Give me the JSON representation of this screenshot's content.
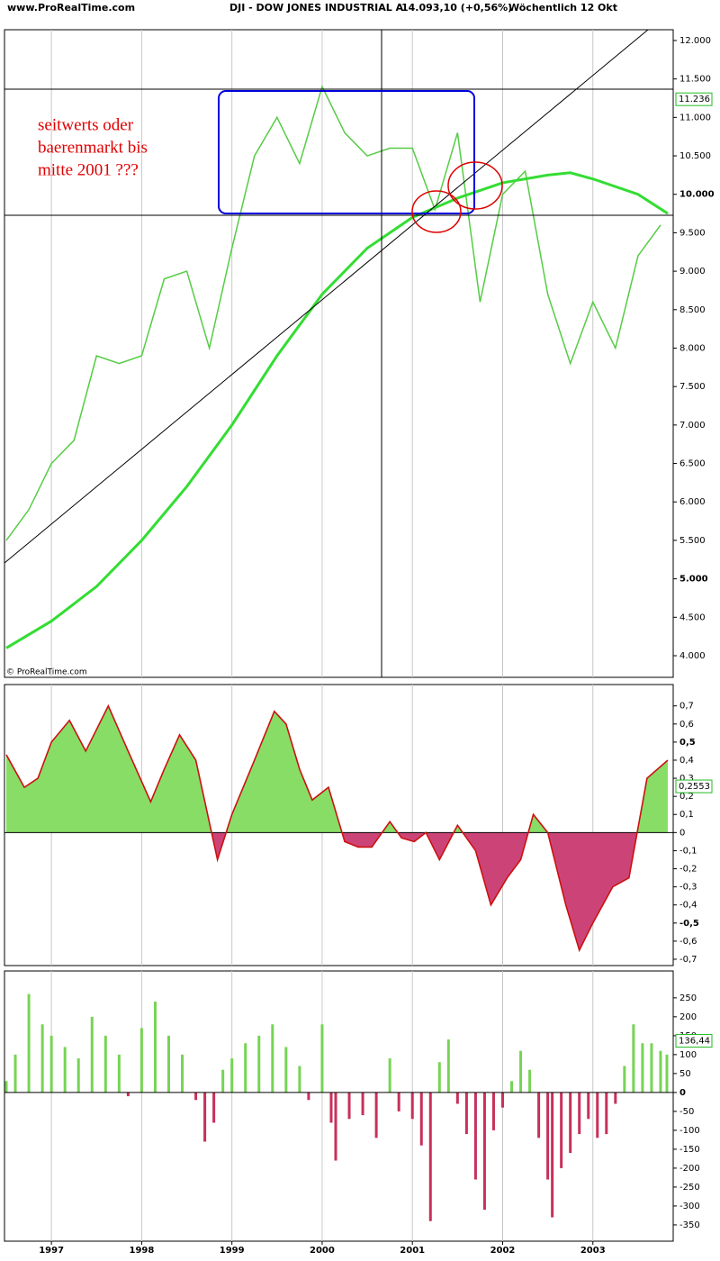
{
  "chart_data": [
    {
      "type": "line",
      "site": "www.ProRealTime.com",
      "title": "DJI - DOW JONES INDUSTRIAL A",
      "quote": "14.093,10 (+0,56%)",
      "period": "Wöchentlich  12 Okt",
      "annotation": [
        "seitwerts oder",
        "baerenmarkt bis",
        "mitte 2001 ???"
      ],
      "copyright": "© ProRealTime.com",
      "last_label": {
        "value": 11236,
        "label": "11.236"
      },
      "last_color": "#22bb22",
      "xlim": [
        1996.48,
        2003.89
      ],
      "ylim": [
        3719,
        12140
      ],
      "yticks": [
        {
          "value": 4000,
          "label": "4.000"
        },
        {
          "value": 4500,
          "label": "4.500"
        },
        {
          "value": 5000,
          "label": "5.000",
          "bold": true
        },
        {
          "value": 5500,
          "label": "5.500"
        },
        {
          "value": 6000,
          "label": "6.000"
        },
        {
          "value": 6500,
          "label": "6.500"
        },
        {
          "value": 7000,
          "label": "7.000"
        },
        {
          "value": 7500,
          "label": "7.500"
        },
        {
          "value": 8000,
          "label": "8.000"
        },
        {
          "value": 8500,
          "label": "8.500"
        },
        {
          "value": 9000,
          "label": "9.000"
        },
        {
          "value": 9500,
          "label": "9.500"
        },
        {
          "value": 10000,
          "label": "10.000",
          "bold": true
        },
        {
          "value": 10500,
          "label": "10.500"
        },
        {
          "value": 11000,
          "label": "11.000"
        },
        {
          "value": 11500,
          "label": "11.500"
        },
        {
          "value": 12000,
          "label": "12.000"
        }
      ],
      "series": [
        {
          "color": "#55cc44",
          "width": 1.5,
          "x": [
            1996.5,
            1996.75,
            1997.0,
            1997.25,
            1997.5,
            1997.75,
            1998.0,
            1998.25,
            1998.5,
            1998.75,
            1999.0,
            1999.25,
            1999.5,
            1999.75,
            2000.0,
            2000.25,
            2000.5,
            2000.75,
            2001.0,
            2001.25,
            2001.5,
            2001.75,
            2002.0,
            2002.25,
            2002.5,
            2002.75,
            2003.0,
            2003.25,
            2003.5,
            2003.75
          ],
          "values": [
            5500,
            5900,
            6500,
            6800,
            7900,
            7800,
            7900,
            8900,
            9000,
            8000,
            9300,
            10500,
            11000,
            10400,
            11400,
            10800,
            10500,
            10600,
            10600,
            9800,
            10800,
            8600,
            10000,
            10300,
            8700,
            7800,
            8600,
            8000,
            9200,
            9600
          ]
        },
        {
          "color": "#33dd33",
          "width": 3,
          "x": [
            1996.5,
            1997.0,
            1997.5,
            1998.0,
            1998.5,
            1999.0,
            1999.5,
            2000.0,
            2000.5,
            2001.0,
            2001.5,
            2002.0,
            2002.5,
            2002.75,
            2003.0,
            2003.5,
            2003.83
          ],
          "values": [
            4100,
            4450,
            4900,
            5500,
            6200,
            7000,
            7900,
            8700,
            9300,
            9700,
            9950,
            10150,
            10250,
            10280,
            10200,
            10000,
            9750
          ]
        }
      ]
    },
    {
      "type": "area",
      "xlim": [
        1996.48,
        2003.89
      ],
      "ylim": [
        -0.735,
        0.818
      ],
      "last_label": {
        "value": 0.2553,
        "label": "0,2553"
      },
      "last_color": "#22bb22",
      "line_color": "#cc1111",
      "up_color": "#88dd66",
      "down_color": "#cc4477",
      "yticks": [
        {
          "value": 0.7,
          "label": "0,7"
        },
        {
          "value": 0.6,
          "label": "0,6"
        },
        {
          "value": 0.5,
          "label": "0,5",
          "bold": true
        },
        {
          "value": 0.4,
          "label": "0,4"
        },
        {
          "value": 0.3,
          "label": "0,3"
        },
        {
          "value": 0.2,
          "label": "0,2"
        },
        {
          "value": 0.1,
          "label": "0,1"
        },
        0,
        {
          "value": -0.1,
          "label": "-0,1"
        },
        {
          "value": -0.2,
          "label": "-0,2"
        },
        {
          "value": -0.3,
          "label": "-0,3"
        },
        {
          "value": -0.4,
          "label": "-0,4"
        },
        {
          "value": -0.5,
          "label": "-0,5",
          "bold": true
        },
        {
          "value": -0.6,
          "label": "-0,6"
        },
        {
          "value": -0.7,
          "label": "-0,7"
        }
      ],
      "x": [
        1996.5,
        1996.7,
        1996.85,
        1997.0,
        1997.2,
        1997.38,
        1997.63,
        1997.85,
        1998.1,
        1998.25,
        1998.42,
        1998.6,
        1998.84,
        1999.0,
        1999.25,
        1999.47,
        1999.6,
        1999.75,
        1999.89,
        2000.07,
        2000.25,
        2000.4,
        2000.55,
        2000.75,
        2000.88,
        2001.02,
        2001.15,
        2001.3,
        2001.5,
        2001.7,
        2001.87,
        2002.05,
        2002.2,
        2002.34,
        2002.5,
        2002.7,
        2002.85,
        2003.0,
        2003.22,
        2003.4,
        2003.6,
        2003.83
      ],
      "values": [
        0.43,
        0.25,
        0.3,
        0.5,
        0.62,
        0.45,
        0.7,
        0.45,
        0.17,
        0.35,
        0.54,
        0.4,
        -0.15,
        0.1,
        0.4,
        0.67,
        0.6,
        0.35,
        0.18,
        0.25,
        -0.05,
        -0.08,
        -0.08,
        0.06,
        -0.03,
        -0.05,
        0.0,
        -0.15,
        0.04,
        -0.1,
        -0.4,
        -0.25,
        -0.15,
        0.1,
        0.0,
        -0.4,
        -0.65,
        -0.5,
        -0.3,
        -0.25,
        0.3,
        0.4
      ]
    },
    {
      "type": "bar",
      "xlim": [
        1996.48,
        2003.89
      ],
      "ylim": [
        -393,
        321
      ],
      "last_label": {
        "value": 136.44,
        "label": "136,44"
      },
      "last_color": "#22bb22",
      "up_color": "#77d455",
      "down_color": "#c8305a",
      "xticks": [
        1997,
        1998,
        1999,
        2000,
        2001,
        2002,
        2003
      ],
      "yticks": [
        250,
        200,
        150,
        100,
        50,
        {
          "value": 0,
          "label": "0",
          "bold": true
        },
        -50,
        -100,
        -150,
        -200,
        -250,
        -300,
        -350
      ],
      "x": [
        1996.5,
        1996.6,
        1996.75,
        1996.9,
        1997.0,
        1997.15,
        1997.3,
        1997.45,
        1997.6,
        1997.75,
        1997.85,
        1998.0,
        1998.15,
        1998.3,
        1998.45,
        1998.6,
        1998.7,
        1998.8,
        1998.9,
        1999.0,
        1999.15,
        1999.3,
        1999.45,
        1999.6,
        1999.75,
        1999.85,
        2000.0,
        2000.1,
        2000.15,
        2000.3,
        2000.45,
        2000.6,
        2000.75,
        2000.85,
        2001.0,
        2001.1,
        2001.2,
        2001.3,
        2001.4,
        2001.5,
        2001.6,
        2001.7,
        2001.8,
        2001.9,
        2002.0,
        2002.1,
        2002.2,
        2002.3,
        2002.4,
        2002.5,
        2002.55,
        2002.65,
        2002.75,
        2002.85,
        2002.95,
        2003.05,
        2003.15,
        2003.25,
        2003.35,
        2003.45,
        2003.55,
        2003.65,
        2003.75,
        2003.82
      ],
      "values": [
        30,
        100,
        260,
        180,
        150,
        120,
        90,
        200,
        150,
        100,
        -10,
        170,
        240,
        150,
        100,
        -20,
        -130,
        -80,
        60,
        90,
        130,
        150,
        180,
        120,
        70,
        -20,
        180,
        -80,
        -180,
        -70,
        -60,
        -120,
        90,
        -50,
        -70,
        -140,
        -340,
        80,
        140,
        -30,
        -110,
        -230,
        -310,
        -100,
        -40,
        30,
        110,
        60,
        -120,
        -230,
        -330,
        -200,
        -160,
        -110,
        -70,
        -120,
        -110,
        -30,
        70,
        180,
        130,
        130,
        110,
        100
      ]
    }
  ]
}
